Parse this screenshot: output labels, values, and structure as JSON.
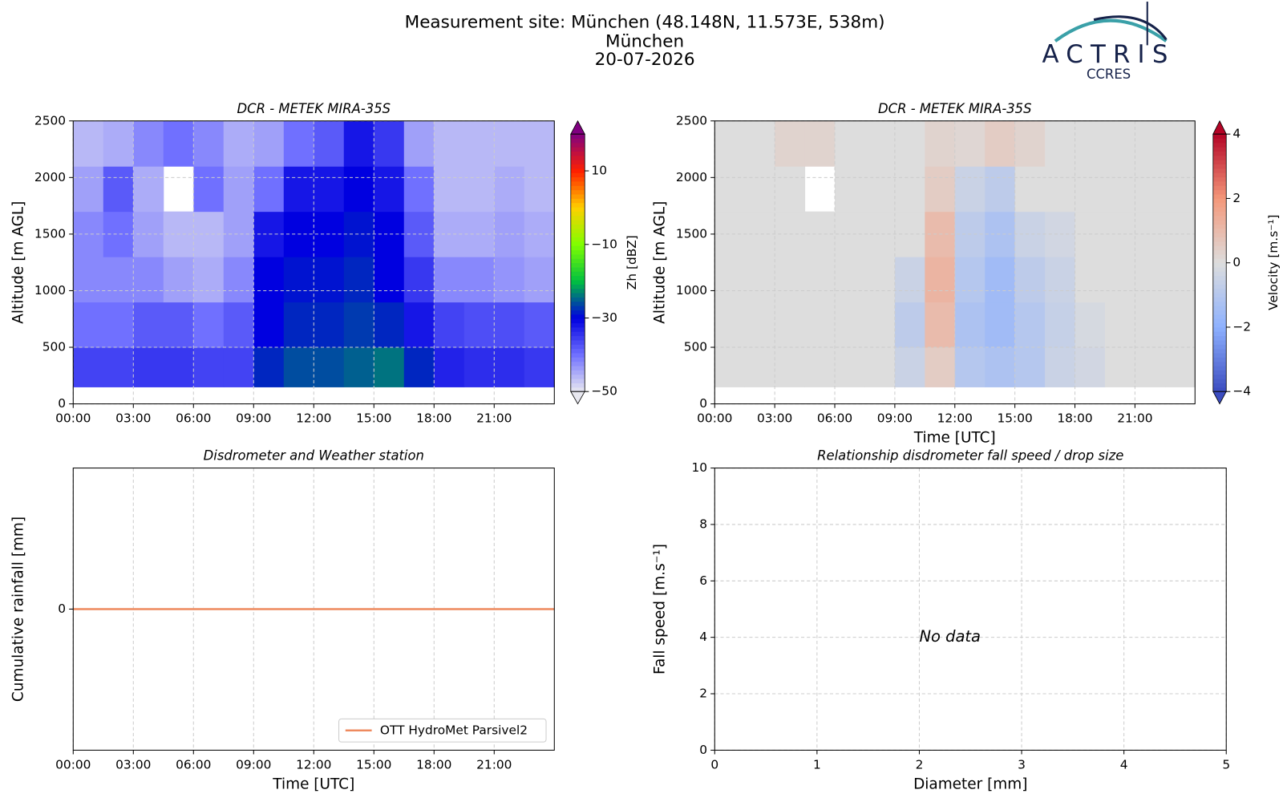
{
  "header": {
    "lines": [
      "Measurement site: München (48.148N, 11.573E, 538m)",
      "München",
      "20-07-2026"
    ]
  },
  "logo": {
    "name": "ACTRIS",
    "sub": "CCRES"
  },
  "chart_data": [
    {
      "type": "heatmap",
      "title": "DCR - METEK MIRA-35S",
      "ylabel": "Altitude [m AGL]",
      "xlim": [
        0,
        24
      ],
      "xticks": [
        {
          "value": 0,
          "label": "00:00"
        },
        {
          "value": 3,
          "label": "03:00"
        },
        {
          "value": 6,
          "label": "06:00"
        },
        {
          "value": 9,
          "label": "09:00"
        },
        {
          "value": 12,
          "label": "12:00"
        },
        {
          "value": 15,
          "label": "15:00"
        },
        {
          "value": 18,
          "label": "18:00"
        },
        {
          "value": 21,
          "label": "21:00"
        }
      ],
      "ylim": [
        0,
        2500
      ],
      "yticks": [
        0,
        500,
        1000,
        1500,
        2000,
        2500
      ],
      "grid": true,
      "time_edges": [
        0,
        1.5,
        3,
        4.5,
        6,
        7.5,
        9,
        10.5,
        12,
        13.5,
        15,
        16.5,
        18,
        19.5,
        21,
        22.5,
        24
      ],
      "altitude_edges": [
        150,
        500,
        900,
        1300,
        1700,
        2100,
        2500
      ],
      "z": [
        [
          -36,
          -36,
          -35,
          -35,
          -36,
          -36,
          -28,
          -26,
          -26,
          -25,
          -24,
          -28,
          -33,
          -34,
          -34,
          -35
        ],
        [
          -40,
          -40,
          -38,
          -38,
          -40,
          -38,
          -30,
          -28,
          -28,
          -27,
          -28,
          -32,
          -36,
          -37,
          -37,
          -38
        ],
        [
          -42,
          -42,
          -42,
          -44,
          -45,
          -42,
          -30,
          -29,
          -29,
          -28,
          -30,
          -35,
          -42,
          -42,
          -43,
          -44
        ],
        [
          -42,
          -40,
          -44,
          -46,
          -46,
          -44,
          -32,
          -30,
          -30,
          -29,
          -30,
          -38,
          -45,
          -45,
          -44,
          -45
        ],
        [
          -44,
          -38,
          -45,
          null,
          -40,
          -44,
          -40,
          -32,
          -32,
          -30,
          -32,
          -40,
          -46,
          -46,
          -45,
          -46
        ],
        [
          -46,
          -45,
          -42,
          -40,
          -42,
          -45,
          -44,
          -40,
          -38,
          -32,
          -35,
          -44,
          -46,
          -46,
          -46,
          -46
        ]
      ],
      "colorbar": {
        "label": "Zh [dBZ]",
        "clim": [
          -50,
          20
        ],
        "ticks": [
          {
            "value": 10,
            "label": "10"
          },
          {
            "value": -10,
            "label": "−10"
          },
          {
            "value": -30,
            "label": "−30"
          },
          {
            "value": -50,
            "label": "−50"
          }
        ],
        "colors": [
          "#e8e8f0",
          "#7070ff",
          "#0000e0",
          "#00c040",
          "#80ff00",
          "#ffd000",
          "#ff2000",
          "#800080"
        ]
      }
    },
    {
      "type": "heatmap",
      "title": "DCR - METEK MIRA-35S",
      "xlabel": "Time [UTC]",
      "ylabel": "Altitude [m AGL]",
      "xlim": [
        0,
        24
      ],
      "xticks": [
        {
          "value": 0,
          "label": "00:00"
        },
        {
          "value": 3,
          "label": "03:00"
        },
        {
          "value": 6,
          "label": "06:00"
        },
        {
          "value": 9,
          "label": "09:00"
        },
        {
          "value": 12,
          "label": "12:00"
        },
        {
          "value": 15,
          "label": "15:00"
        },
        {
          "value": 18,
          "label": "18:00"
        },
        {
          "value": 21,
          "label": "21:00"
        }
      ],
      "ylim": [
        0,
        2500
      ],
      "yticks": [
        0,
        500,
        1000,
        1500,
        2000,
        2500
      ],
      "grid": true,
      "time_edges": [
        0,
        1.5,
        3,
        4.5,
        6,
        7.5,
        9,
        10.5,
        12,
        13.5,
        15,
        16.5,
        18,
        19.5,
        21,
        22.5,
        24
      ],
      "altitude_edges": [
        150,
        500,
        900,
        1300,
        1700,
        2100,
        2500
      ],
      "z": [
        [
          0,
          0,
          0,
          0,
          0,
          0,
          -0.5,
          0.5,
          -1,
          -1.2,
          -1,
          -0.5,
          -0.3,
          0,
          0,
          0
        ],
        [
          0,
          0,
          0,
          0,
          0,
          0,
          -0.8,
          1,
          -1.2,
          -1.5,
          -1,
          -0.6,
          -0.2,
          0,
          0,
          0
        ],
        [
          0,
          0,
          0,
          0,
          0,
          0,
          -0.5,
          1.2,
          -1,
          -1.5,
          -0.8,
          -0.5,
          0,
          0,
          0,
          0
        ],
        [
          0,
          0,
          0,
          0,
          0,
          0,
          0,
          1,
          -0.8,
          -1.2,
          -0.5,
          -0.3,
          0,
          0,
          0,
          0
        ],
        [
          0,
          0,
          0,
          null,
          0,
          0,
          0,
          0.5,
          -0.5,
          -0.8,
          0,
          0,
          0,
          0,
          0,
          0
        ],
        [
          0,
          0,
          0.3,
          0.3,
          0,
          0,
          0,
          0.3,
          0.2,
          0.5,
          0.3,
          0,
          0,
          0,
          0,
          0
        ]
      ],
      "colorbar": {
        "label": "Velocity [m.s⁻¹]",
        "clim": [
          -4,
          4
        ],
        "ticks": [
          {
            "value": 4,
            "label": "4"
          },
          {
            "value": 2,
            "label": "2"
          },
          {
            "value": 0,
            "label": "0"
          },
          {
            "value": -2,
            "label": "−2"
          },
          {
            "value": -4,
            "label": "−4"
          }
        ],
        "colors": [
          "#3b4cc0",
          "#8db0fe",
          "#dddddd",
          "#f4987a",
          "#b40426"
        ]
      }
    },
    {
      "type": "line",
      "title": "Disdrometer and Weather station",
      "xlabel": "Time [UTC]",
      "ylabel": "Cumulative rainfall [mm]",
      "xlim": [
        0,
        24
      ],
      "xticks": [
        {
          "value": 0,
          "label": "00:00"
        },
        {
          "value": 3,
          "label": "03:00"
        },
        {
          "value": 6,
          "label": "06:00"
        },
        {
          "value": 9,
          "label": "09:00"
        },
        {
          "value": 12,
          "label": "12:00"
        },
        {
          "value": 15,
          "label": "15:00"
        },
        {
          "value": 18,
          "label": "18:00"
        },
        {
          "value": 21,
          "label": "21:00"
        }
      ],
      "ylim": [
        -1,
        1
      ],
      "yticks": [
        0
      ],
      "grid": true,
      "legend": "lower right",
      "series": [
        {
          "name": "OTT HydroMet Parsivel2",
          "color": "#ee8a5f",
          "x": [
            0,
            24
          ],
          "values": [
            0,
            0
          ]
        }
      ]
    },
    {
      "type": "scatter",
      "title": "Relationship disdrometer fall speed / drop size",
      "xlabel": "Diameter [mm]",
      "ylabel": "Fall speed [m.s⁻¹]",
      "xlim": [
        0,
        5
      ],
      "xticks": [
        0,
        1,
        2,
        3,
        4,
        5
      ],
      "ylim": [
        0,
        10
      ],
      "yticks": [
        0,
        2,
        4,
        6,
        8,
        10
      ],
      "grid": true,
      "annotation": "No data"
    }
  ]
}
